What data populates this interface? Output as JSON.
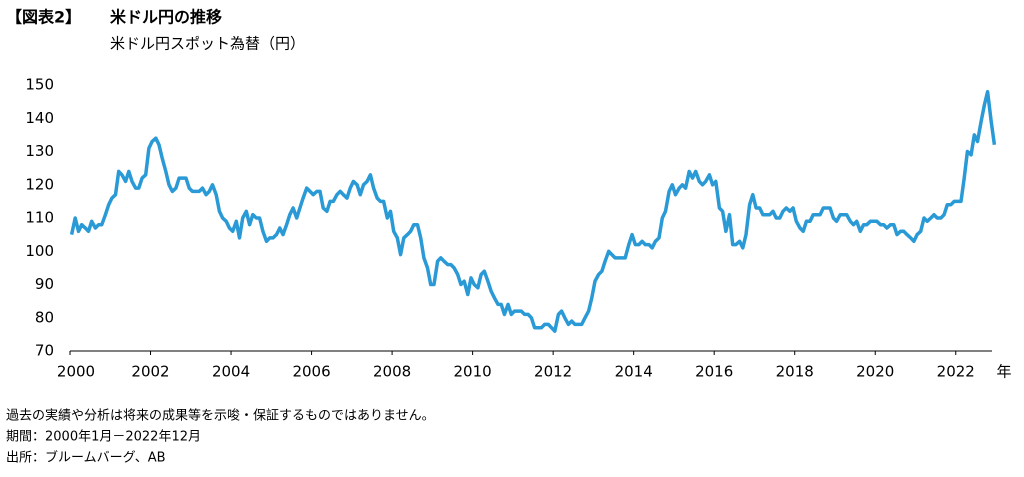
{
  "chart_data": {
    "type": "line",
    "label": "【図表2】",
    "title": "米ドル円の推移",
    "subtitle": "米ドル円スポット為替（円）",
    "xlabel": "年",
    "notes": [
      "過去の実績や分析は将来の成果等を示唆・保証するものではありません。",
      "期間：2000年1月－2022年12月",
      "出所：ブルームバーグ、AB"
    ],
    "color": "#2a9ad6",
    "xlim": [
      2000,
      2022.9
    ],
    "xticks": [
      2000,
      2002,
      2004,
      2006,
      2008,
      2010,
      2012,
      2014,
      2016,
      2018,
      2020,
      2022
    ],
    "ylim": [
      70,
      150
    ],
    "yticks": [
      70,
      80,
      90,
      100,
      110,
      120,
      130,
      140,
      150
    ],
    "x": [
      2000.04,
      2000.13,
      2000.21,
      2000.29,
      2000.38,
      2000.46,
      2000.54,
      2000.63,
      2000.71,
      2000.79,
      2000.88,
      2000.96,
      2001.04,
      2001.13,
      2001.21,
      2001.29,
      2001.38,
      2001.46,
      2001.54,
      2001.63,
      2001.71,
      2001.79,
      2001.88,
      2001.96,
      2002.04,
      2002.13,
      2002.21,
      2002.29,
      2002.38,
      2002.46,
      2002.54,
      2002.63,
      2002.71,
      2002.79,
      2002.88,
      2002.96,
      2003.04,
      2003.13,
      2003.21,
      2003.29,
      2003.38,
      2003.46,
      2003.54,
      2003.63,
      2003.71,
      2003.79,
      2003.88,
      2003.96,
      2004.04,
      2004.13,
      2004.21,
      2004.29,
      2004.38,
      2004.46,
      2004.54,
      2004.63,
      2004.71,
      2004.79,
      2004.88,
      2004.96,
      2005.04,
      2005.13,
      2005.21,
      2005.29,
      2005.38,
      2005.46,
      2005.54,
      2005.63,
      2005.71,
      2005.79,
      2005.88,
      2005.96,
      2006.04,
      2006.13,
      2006.21,
      2006.29,
      2006.38,
      2006.46,
      2006.54,
      2006.63,
      2006.71,
      2006.79,
      2006.88,
      2006.96,
      2007.04,
      2007.13,
      2007.21,
      2007.29,
      2007.38,
      2007.46,
      2007.54,
      2007.63,
      2007.71,
      2007.79,
      2007.88,
      2007.96,
      2008.04,
      2008.13,
      2008.21,
      2008.29,
      2008.38,
      2008.46,
      2008.54,
      2008.63,
      2008.71,
      2008.79,
      2008.88,
      2008.96,
      2009.04,
      2009.13,
      2009.21,
      2009.29,
      2009.38,
      2009.46,
      2009.54,
      2009.63,
      2009.71,
      2009.79,
      2009.88,
      2009.96,
      2010.04,
      2010.13,
      2010.21,
      2010.29,
      2010.38,
      2010.46,
      2010.54,
      2010.63,
      2010.71,
      2010.79,
      2010.88,
      2010.96,
      2011.04,
      2011.13,
      2011.21,
      2011.29,
      2011.38,
      2011.46,
      2011.54,
      2011.63,
      2011.71,
      2011.79,
      2011.88,
      2011.96,
      2012.04,
      2012.13,
      2012.21,
      2012.29,
      2012.38,
      2012.46,
      2012.54,
      2012.63,
      2012.71,
      2012.79,
      2012.88,
      2012.96,
      2013.04,
      2013.13,
      2013.21,
      2013.29,
      2013.38,
      2013.46,
      2013.54,
      2013.63,
      2013.71,
      2013.79,
      2013.88,
      2013.96,
      2014.04,
      2014.13,
      2014.21,
      2014.29,
      2014.38,
      2014.46,
      2014.54,
      2014.63,
      2014.71,
      2014.79,
      2014.88,
      2014.96,
      2015.04,
      2015.13,
      2015.21,
      2015.29,
      2015.38,
      2015.46,
      2015.54,
      2015.63,
      2015.71,
      2015.79,
      2015.88,
      2015.96,
      2016.04,
      2016.13,
      2016.21,
      2016.29,
      2016.38,
      2016.46,
      2016.54,
      2016.63,
      2016.71,
      2016.79,
      2016.88,
      2016.96,
      2017.04,
      2017.13,
      2017.21,
      2017.29,
      2017.38,
      2017.46,
      2017.54,
      2017.63,
      2017.71,
      2017.79,
      2017.88,
      2017.96,
      2018.04,
      2018.13,
      2018.21,
      2018.29,
      2018.38,
      2018.46,
      2018.54,
      2018.63,
      2018.71,
      2018.79,
      2018.88,
      2018.96,
      2019.04,
      2019.13,
      2019.21,
      2019.29,
      2019.38,
      2019.46,
      2019.54,
      2019.63,
      2019.71,
      2019.79,
      2019.88,
      2019.96,
      2020.04,
      2020.13,
      2020.21,
      2020.29,
      2020.38,
      2020.46,
      2020.54,
      2020.63,
      2020.71,
      2020.79,
      2020.88,
      2020.96,
      2021.04,
      2021.13,
      2021.21,
      2021.29,
      2021.38,
      2021.46,
      2021.54,
      2021.63,
      2021.71,
      2021.79,
      2021.88,
      2021.96,
      2022.04,
      2022.13,
      2022.21,
      2022.29,
      2022.38,
      2022.46,
      2022.54,
      2022.63,
      2022.71,
      2022.79,
      2022.88,
      2022.96
    ],
    "values": [
      105,
      110,
      106,
      108,
      107,
      106,
      109,
      107,
      108,
      108,
      111,
      114,
      116,
      117,
      124,
      123,
      121,
      124,
      121,
      119,
      119,
      122,
      123,
      131,
      133,
      134,
      132,
      128,
      124,
      120,
      118,
      119,
      122,
      122,
      122,
      119,
      118,
      118,
      118,
      119,
      117,
      118,
      120,
      117,
      112,
      110,
      109,
      107,
      106,
      109,
      104,
      110,
      112,
      108,
      111,
      110,
      110,
      106,
      103,
      104,
      104,
      105,
      107,
      105,
      108,
      111,
      113,
      110,
      113,
      116,
      119,
      118,
      117,
      118,
      118,
      113,
      112,
      115,
      115,
      117,
      118,
      117,
      116,
      119,
      121,
      120,
      117,
      120,
      121,
      123,
      119,
      116,
      115,
      115,
      110,
      112,
      106,
      104,
      99,
      104,
      105,
      106,
      108,
      108,
      104,
      98,
      95,
      90,
      90,
      97,
      98,
      97,
      96,
      96,
      95,
      93,
      90,
      91,
      87,
      92,
      90,
      89,
      93,
      94,
      91,
      88,
      86,
      84,
      84,
      81,
      84,
      81,
      82,
      82,
      82,
      81,
      81,
      80,
      77,
      77,
      77,
      78,
      78,
      77,
      76,
      81,
      82,
      80,
      78,
      79,
      78,
      78,
      78,
      80,
      82,
      86,
      91,
      93,
      94,
      97,
      100,
      99,
      98,
      98,
      98,
      98,
      102,
      105,
      102,
      102,
      103,
      102,
      102,
      101,
      103,
      104,
      110,
      112,
      118,
      120,
      117,
      119,
      120,
      119,
      124,
      122,
      124,
      121,
      120,
      121,
      123,
      120,
      121,
      113,
      112,
      106,
      111,
      102,
      102,
      103,
      101,
      105,
      114,
      117,
      113,
      113,
      111,
      111,
      111,
      112,
      110,
      110,
      112,
      113,
      112,
      113,
      109,
      107,
      106,
      109,
      109,
      111,
      111,
      111,
      113,
      113,
      113,
      110,
      109,
      111,
      111,
      111,
      109,
      108,
      109,
      106,
      108,
      108,
      109,
      109,
      109,
      108,
      108,
      107,
      108,
      108,
      105,
      106,
      106,
      105,
      104,
      103,
      105,
      106,
      110,
      109,
      110,
      111,
      110,
      110,
      111,
      114,
      114,
      115,
      115,
      115,
      122,
      130,
      129,
      135,
      133,
      139,
      144,
      148,
      139,
      132
    ]
  }
}
